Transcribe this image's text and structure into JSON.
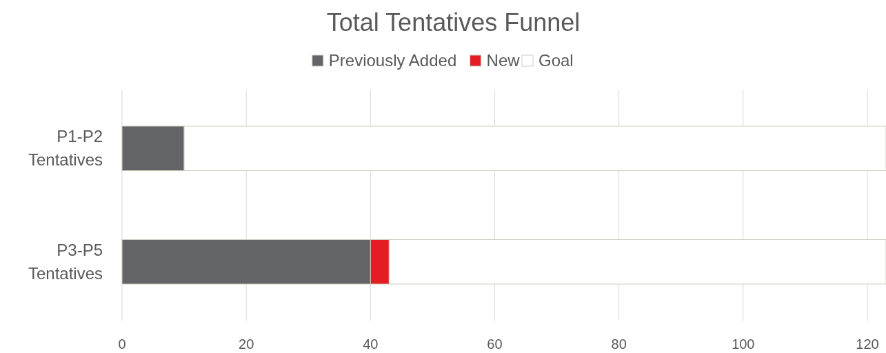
{
  "chart_data": {
    "type": "bar",
    "title": "Total Tentatives Funnel",
    "orientation": "horizontal",
    "stacked": true,
    "categories": [
      "P1-P2 Tentatives",
      "P3-P5 Tentatives"
    ],
    "series": [
      {
        "name": "Previously Added",
        "color": "#636467",
        "values": [
          10,
          40
        ]
      },
      {
        "name": "New",
        "color": "#e31d23",
        "values": [
          0,
          3
        ]
      },
      {
        "name": "Goal",
        "color": "#ffffff",
        "values": [
          113,
          80
        ]
      }
    ],
    "xlim": [
      0,
      123
    ],
    "xticks": [
      0,
      20,
      40,
      60,
      80,
      100,
      120
    ],
    "grid": "x",
    "legend": "top"
  }
}
